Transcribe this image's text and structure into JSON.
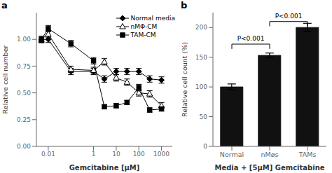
{
  "chart_data": [
    {
      "type": "line",
      "title": "a",
      "x_label": "Gemcitabine [μM]",
      "y_label": "Relative cell number",
      "x": [
        0.005,
        0.01,
        0.1,
        1,
        3,
        10,
        30,
        100,
        300,
        1000
      ],
      "series": [
        {
          "name": "Normal media",
          "color": "black",
          "marker": "diamond",
          "line_style": "solid",
          "values": [
            1.0,
            1.0,
            0.7,
            0.7,
            0.63,
            0.7,
            0.7,
            0.7,
            0.63,
            0.62
          ],
          "errors": [
            0.03,
            0.03,
            0.03,
            0.03,
            0.03,
            0.03,
            0.03,
            0.03,
            0.03,
            0.03
          ]
        },
        {
          "name": "nMΦ-CM",
          "color": "black",
          "marker": "open_triangle",
          "line_style": "solid",
          "values": [
            1.0,
            1.05,
            0.72,
            0.71,
            0.79,
            0.64,
            0.6,
            0.5,
            0.49,
            0.38
          ],
          "errors": [
            0.03,
            0.03,
            0.03,
            0.03,
            0.03,
            0.03,
            0.03,
            0.03,
            0.03,
            0.03
          ]
        },
        {
          "name": "TAM-CM",
          "color": "black",
          "marker": "square",
          "line_style": "solid",
          "values": [
            1.0,
            1.1,
            0.96,
            0.8,
            0.37,
            0.38,
            0.41,
            0.55,
            0.34,
            0.35
          ],
          "errors": [
            0.03,
            0.03,
            0.03,
            0.03,
            0.02,
            0.02,
            0.02,
            0.03,
            0.02,
            0.02
          ]
        }
      ],
      "log": "x",
      "xlim": [
        0.003,
        3000
      ],
      "xticks": [
        0.01,
        1,
        10,
        100,
        1000
      ],
      "ylim": [
        0,
        1.25
      ],
      "yticks": [
        {
          "value": 0,
          "label": "0.00"
        },
        {
          "value": 0.25,
          "label": "0.25"
        },
        {
          "value": 0.5,
          "label": "0.50"
        },
        {
          "value": 0.75,
          "label": "0.75"
        },
        {
          "value": 1.0,
          "label": "1.00"
        }
      ],
      "legend": "upper right",
      "grid": false
    },
    {
      "type": "bar",
      "title": "b",
      "x_label": "Media + [5μM] Gemcitabine",
      "y_label": "Relative cell count (%)",
      "categories": [
        "Normal",
        "nMøs",
        "TAMs"
      ],
      "values": [
        100,
        153,
        200
      ],
      "errors": [
        5,
        4,
        7
      ],
      "color": "#111111",
      "ylim": [
        0,
        225
      ],
      "yticks": [
        0,
        50,
        100,
        150,
        200
      ],
      "grid": false,
      "annotations": [
        {
          "text": "P<0.001",
          "x1": "Normal",
          "x2": "nMøs",
          "y": 172
        },
        {
          "text": "P<0.001",
          "x1": "nMøs",
          "x2": "TAMs",
          "y": 210
        }
      ]
    }
  ]
}
